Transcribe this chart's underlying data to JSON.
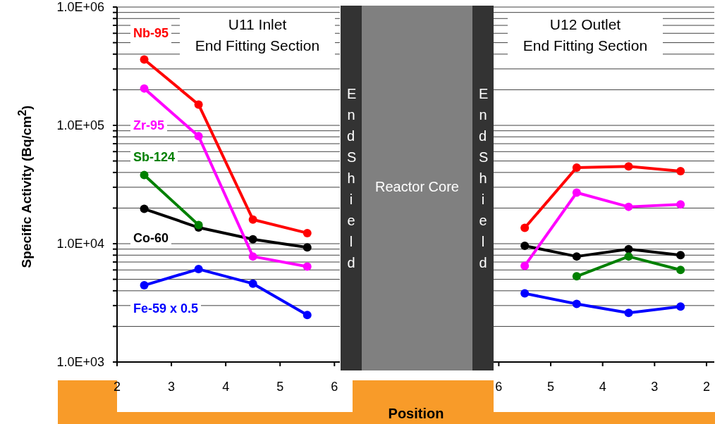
{
  "chart_data": [
    {
      "type": "line",
      "title": "U11 Inlet\nEnd Fitting Section",
      "ylabel": "Specific Activity (Bq/cm$^{2}$)",
      "xlabel": "Position",
      "annotations": [
        "End Shield",
        "Reactor Core"
      ],
      "x": [
        2.5,
        3.5,
        4.5,
        5.5
      ],
      "series": [
        {
          "name": "Nb-95",
          "color": "#ff0000",
          "values": [
            360000,
            150000,
            16000,
            12300
          ]
        },
        {
          "name": "Zr-95",
          "color": "#ff00ff",
          "values": [
            205000,
            81000,
            7800,
            6400
          ]
        },
        {
          "name": "Sb-124",
          "color": "#008000",
          "values": [
            38000,
            14400,
            null,
            null
          ]
        },
        {
          "name": "Co-60",
          "color": "#000000",
          "values": [
            19700,
            13700,
            10900,
            9300
          ]
        },
        {
          "name": "Fe-59 x 0.5",
          "color": "#0000ff",
          "values": [
            4450,
            6100,
            4600,
            2500
          ]
        }
      ],
      "xlim": [
        2,
        6.1
      ],
      "xticks": [
        2,
        3,
        4,
        5,
        6
      ],
      "ylim": [
        1000,
        1000000
      ],
      "log": "y",
      "grid": "y",
      "marker": "circle",
      "yticks": [
        {
          "value": 1000,
          "label": "1.0E+03"
        },
        {
          "value": 2000,
          "label": null
        },
        {
          "value": 3000,
          "label": null
        },
        {
          "value": 4000,
          "label": null
        },
        {
          "value": 5000,
          "label": null
        },
        {
          "value": 6000,
          "label": null
        },
        {
          "value": 7000,
          "label": null
        },
        {
          "value": 8000,
          "label": null
        },
        {
          "value": 9000,
          "label": null
        },
        {
          "value": 10000,
          "label": "1.0E+04"
        },
        {
          "value": 20000,
          "label": null
        },
        {
          "value": 30000,
          "label": null
        },
        {
          "value": 40000,
          "label": null
        },
        {
          "value": 50000,
          "label": null
        },
        {
          "value": 60000,
          "label": null
        },
        {
          "value": 70000,
          "label": null
        },
        {
          "value": 80000,
          "label": null
        },
        {
          "value": 90000,
          "label": null
        },
        {
          "value": 100000,
          "label": "1.0E+05"
        },
        {
          "value": 200000,
          "label": null
        },
        {
          "value": 300000,
          "label": null
        },
        {
          "value": 400000,
          "label": null
        },
        {
          "value": 500000,
          "label": null
        },
        {
          "value": 600000,
          "label": null
        },
        {
          "value": 700000,
          "label": null
        },
        {
          "value": 800000,
          "label": null
        },
        {
          "value": 900000,
          "label": null
        },
        {
          "value": 1000000,
          "label": "1.0E+06"
        }
      ]
    },
    {
      "type": "line",
      "title": "U12 Outlet\nEnd Fitting Section",
      "annotations": [
        "End Shield"
      ],
      "x": [
        5.5,
        4.5,
        3.5,
        2.5
      ],
      "series": [
        {
          "color": "#ff0000",
          "values": [
            13600,
            44000,
            45000,
            41000
          ]
        },
        {
          "color": "#ff00ff",
          "values": [
            6500,
            27000,
            20500,
            21500
          ]
        },
        {
          "color": "#008000",
          "values": [
            null,
            5300,
            7800,
            6000
          ]
        },
        {
          "color": "#000000",
          "values": [
            9600,
            7800,
            9000,
            8000
          ]
        },
        {
          "color": "#0000ff",
          "values": [
            3800,
            3100,
            2600,
            2940
          ]
        }
      ],
      "xlim": [
        6.1,
        1.85
      ],
      "xticks": [
        6,
        5,
        4,
        3,
        2
      ],
      "ylim": [
        1000,
        1000000
      ],
      "log": "y",
      "grid": "y",
      "marker": "circle",
      "tick_labels": "x",
      "yticks": [
        1000,
        2000,
        3000,
        4000,
        5000,
        6000,
        7000,
        8000,
        9000,
        10000,
        20000,
        30000,
        40000,
        50000,
        60000,
        70000,
        80000,
        90000,
        100000,
        200000,
        300000,
        400000,
        500000,
        600000,
        700000,
        800000,
        900000,
        1000000
      ]
    }
  ]
}
